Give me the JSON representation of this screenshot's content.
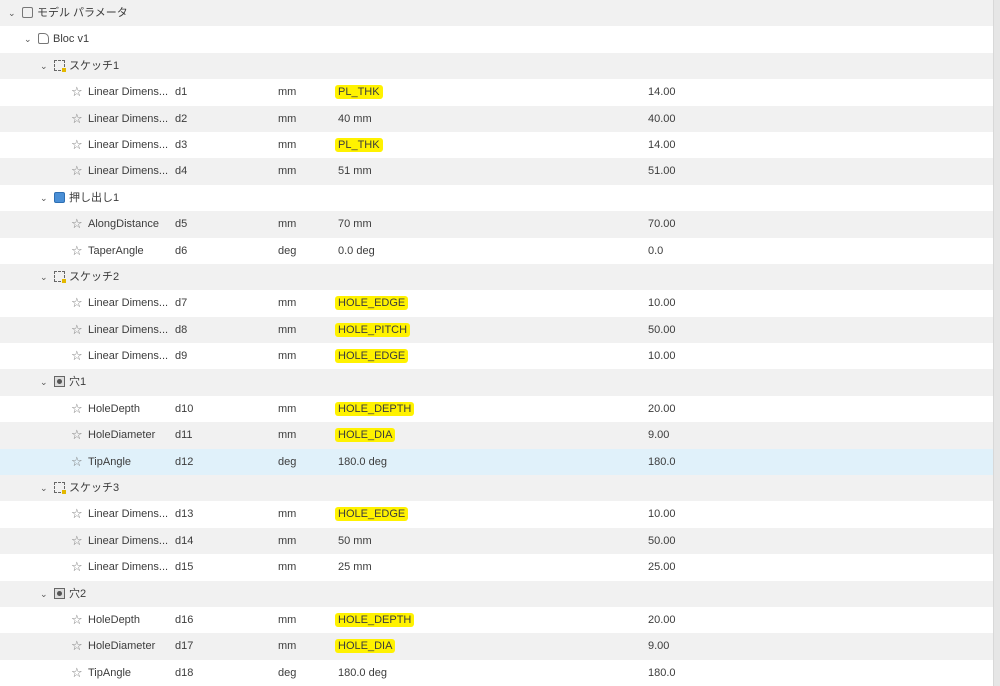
{
  "highlight_color": "#fff200",
  "selected_row_color": "#e0f1fa",
  "rows": [
    {
      "type": "group",
      "level": 0,
      "icon": "parameters-icon",
      "label": "モデル パラメータ"
    },
    {
      "type": "group",
      "level": 1,
      "icon": "component-icon",
      "label": "Bloc v1"
    },
    {
      "type": "group",
      "level": 2,
      "icon": "sketch-icon",
      "label": "スケッチ1"
    },
    {
      "type": "param",
      "name": "Linear Dimens...",
      "id": "d1",
      "unit": "mm",
      "expr": "PL_THK",
      "highlight": true,
      "value": "14.00"
    },
    {
      "type": "param",
      "name": "Linear Dimens...",
      "id": "d2",
      "unit": "mm",
      "expr": "40 mm",
      "value": "40.00"
    },
    {
      "type": "param",
      "name": "Linear Dimens...",
      "id": "d3",
      "unit": "mm",
      "expr": "PL_THK",
      "highlight": true,
      "value": "14.00"
    },
    {
      "type": "param",
      "name": "Linear Dimens...",
      "id": "d4",
      "unit": "mm",
      "expr": "51 mm",
      "value": "51.00"
    },
    {
      "type": "group",
      "level": 2,
      "icon": "extrude-icon",
      "label": "押し出し1"
    },
    {
      "type": "param",
      "name": "AlongDistance",
      "id": "d5",
      "unit": "mm",
      "expr": "70 mm",
      "value": "70.00"
    },
    {
      "type": "param",
      "name": "TaperAngle",
      "id": "d6",
      "unit": "deg",
      "expr": "0.0 deg",
      "value": "0.0"
    },
    {
      "type": "group",
      "level": 2,
      "icon": "sketch-icon",
      "label": "スケッチ2"
    },
    {
      "type": "param",
      "name": "Linear Dimens...",
      "id": "d7",
      "unit": "mm",
      "expr": "HOLE_EDGE",
      "highlight": true,
      "value": "10.00"
    },
    {
      "type": "param",
      "name": "Linear Dimens...",
      "id": "d8",
      "unit": "mm",
      "expr": "HOLE_PITCH",
      "highlight": true,
      "value": "50.00"
    },
    {
      "type": "param",
      "name": "Linear Dimens...",
      "id": "d9",
      "unit": "mm",
      "expr": "HOLE_EDGE",
      "highlight": true,
      "value": "10.00"
    },
    {
      "type": "group",
      "level": 2,
      "icon": "hole-icon",
      "label": "穴1"
    },
    {
      "type": "param",
      "name": "HoleDepth",
      "id": "d10",
      "unit": "mm",
      "expr": "HOLE_DEPTH",
      "highlight": true,
      "value": "20.00"
    },
    {
      "type": "param",
      "name": "HoleDiameter",
      "id": "d11",
      "unit": "mm",
      "expr": "HOLE_DIA",
      "highlight": true,
      "value": "9.00"
    },
    {
      "type": "param",
      "name": "TipAngle",
      "id": "d12",
      "unit": "deg",
      "expr": "180.0 deg",
      "value": "180.0",
      "selected": true
    },
    {
      "type": "group",
      "level": 2,
      "icon": "sketch-icon",
      "label": "スケッチ3"
    },
    {
      "type": "param",
      "name": "Linear Dimens...",
      "id": "d13",
      "unit": "mm",
      "expr": "HOLE_EDGE",
      "highlight": true,
      "value": "10.00"
    },
    {
      "type": "param",
      "name": "Linear Dimens...",
      "id": "d14",
      "unit": "mm",
      "expr": "50 mm",
      "value": "50.00"
    },
    {
      "type": "param",
      "name": "Linear Dimens...",
      "id": "d15",
      "unit": "mm",
      "expr": "25 mm",
      "value": "25.00"
    },
    {
      "type": "group",
      "level": 2,
      "icon": "hole-icon",
      "label": "穴2"
    },
    {
      "type": "param",
      "name": "HoleDepth",
      "id": "d16",
      "unit": "mm",
      "expr": "HOLE_DEPTH",
      "highlight": true,
      "value": "20.00"
    },
    {
      "type": "param",
      "name": "HoleDiameter",
      "id": "d17",
      "unit": "mm",
      "expr": "HOLE_DIA",
      "highlight": true,
      "value": "9.00"
    },
    {
      "type": "param",
      "name": "TipAngle",
      "id": "d18",
      "unit": "deg",
      "expr": "180.0 deg",
      "value": "180.0"
    }
  ]
}
